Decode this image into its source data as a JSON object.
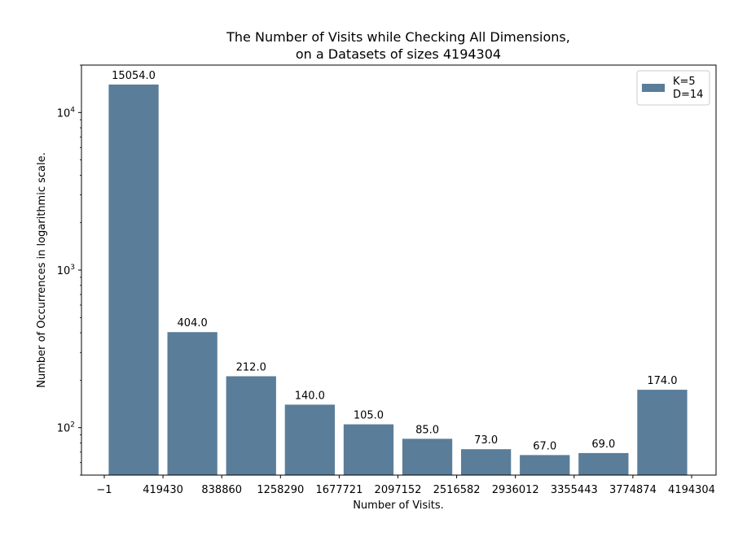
{
  "chart_data": {
    "type": "bar",
    "title": "The Number of Visits while Checking All Dimensions,",
    "subtitle": "on a Datasets of sizes 4194304",
    "xlabel": "Number of Visits.",
    "ylabel": "Number of Occurrences in logarithmic scale.",
    "yscale": "log",
    "ylim": [
      50,
      20000
    ],
    "x_ticks": [
      "−1",
      "419430",
      "838860",
      "1258290",
      "1677721",
      "2097152",
      "2516582",
      "2936012",
      "3355443",
      "3774874",
      "4194304"
    ],
    "y_ticks": [
      {
        "value": 100,
        "base": "10",
        "exp": "2"
      },
      {
        "value": 1000,
        "base": "10",
        "exp": "3"
      },
      {
        "value": 10000,
        "base": "10",
        "exp": "4"
      }
    ],
    "values": [
      15054.0,
      404.0,
      212.0,
      140.0,
      105.0,
      85.0,
      73.0,
      67.0,
      69.0,
      174.0
    ],
    "value_labels": [
      "15054.0",
      "404.0",
      "212.0",
      "140.0",
      "105.0",
      "85.0",
      "73.0",
      "67.0",
      "69.0",
      "174.0"
    ],
    "legend": {
      "lines": [
        "K=5",
        "D=14"
      ],
      "position": "top-right"
    },
    "bar_color": "#5a7d99",
    "grid": false
  }
}
